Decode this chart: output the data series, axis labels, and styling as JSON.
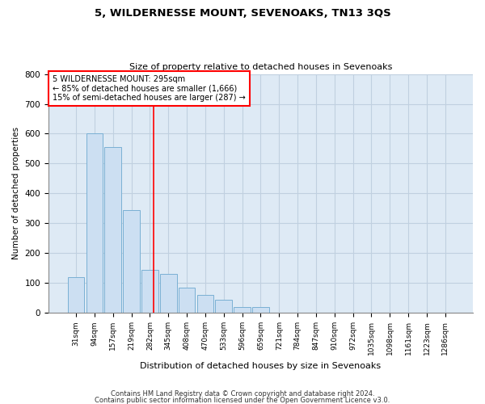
{
  "title": "5, WILDERNESSE MOUNT, SEVENOAKS, TN13 3QS",
  "subtitle": "Size of property relative to detached houses in Sevenoaks",
  "xlabel": "Distribution of detached houses by size in Sevenoaks",
  "ylabel": "Number of detached properties",
  "bar_labels": [
    "31sqm",
    "94sqm",
    "157sqm",
    "219sqm",
    "282sqm",
    "345sqm",
    "408sqm",
    "470sqm",
    "533sqm",
    "596sqm",
    "659sqm",
    "721sqm",
    "784sqm",
    "847sqm",
    "910sqm",
    "972sqm",
    "1035sqm",
    "1098sqm",
    "1161sqm",
    "1223sqm",
    "1286sqm"
  ],
  "bar_values": [
    120,
    600,
    555,
    345,
    145,
    130,
    85,
    60,
    45,
    20,
    20,
    0,
    0,
    0,
    0,
    0,
    0,
    0,
    0,
    0,
    0
  ],
  "bar_color": "#ccdff2",
  "bar_edge_color": "#7ab0d4",
  "grid_color": "#c0d0e0",
  "background_color": "#deeaf5",
  "ylim": [
    0,
    800
  ],
  "yticks": [
    0,
    100,
    200,
    300,
    400,
    500,
    600,
    700,
    800
  ],
  "red_line_x": 4.2,
  "annotation_title": "5 WILDERNESSE MOUNT: 295sqm",
  "annotation_line1": "← 85% of detached houses are smaller (1,666)",
  "annotation_line2": "15% of semi-detached houses are larger (287) →",
  "footer1": "Contains HM Land Registry data © Crown copyright and database right 2024.",
  "footer2": "Contains public sector information licensed under the Open Government Licence v3.0."
}
